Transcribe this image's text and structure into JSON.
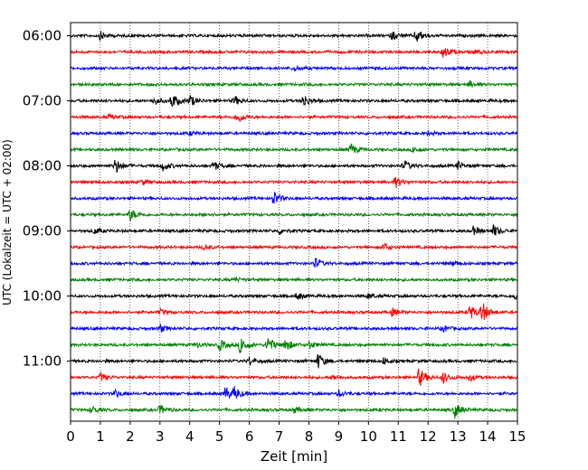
{
  "chart_data": {
    "type": "line",
    "title": "",
    "xlabel": "Zeit  [min]",
    "ylabel": "UTC (Lokalzeit = UTC + 02:00)",
    "xlim": [
      0,
      15
    ],
    "x_ticks": [
      "0",
      "1",
      "2",
      "3",
      "4",
      "5",
      "6",
      "7",
      "8",
      "9",
      "10",
      "11",
      "12",
      "13",
      "14",
      "15"
    ],
    "y_tick_labels": [
      "06:00",
      "07:00",
      "08:00",
      "09:00",
      "10:00",
      "11:00"
    ],
    "grid": "vertical dotted lines at each minute",
    "trace_interval_min": 15,
    "start_time": "06:00",
    "trace_colors": [
      "#000000",
      "#ff0000",
      "#0000ff",
      "#008000"
    ],
    "series": [
      {
        "row": 0,
        "color": "#000000",
        "events": [
          [
            11.6,
            0.55
          ],
          [
            1.0,
            0.3
          ],
          [
            10.8,
            0.35
          ]
        ]
      },
      {
        "row": 1,
        "color": "#ff0000",
        "events": [
          [
            12.5,
            0.5
          ],
          [
            13.6,
            0.2
          ]
        ]
      },
      {
        "row": 2,
        "color": "#0000ff",
        "events": [
          [
            7.5,
            0.2
          ]
        ]
      },
      {
        "row": 3,
        "color": "#008000",
        "events": [
          [
            13.4,
            0.25
          ]
        ]
      },
      {
        "row": 4,
        "color": "#000000",
        "events": [
          [
            3.4,
            0.6
          ],
          [
            4.0,
            0.45
          ],
          [
            7.8,
            0.55
          ],
          [
            5.5,
            0.35
          ],
          [
            2.8,
            0.3
          ]
        ]
      },
      {
        "row": 5,
        "color": "#ff0000",
        "events": [
          [
            5.6,
            0.45
          ],
          [
            1.3,
            0.2
          ]
        ]
      },
      {
        "row": 6,
        "color": "#0000ff",
        "events": [
          [
            4.0,
            0.15
          ],
          [
            12.0,
            0.15
          ]
        ]
      },
      {
        "row": 7,
        "color": "#008000",
        "events": [
          [
            9.4,
            0.45
          ],
          [
            11.5,
            0.2
          ]
        ]
      },
      {
        "row": 8,
        "color": "#000000",
        "events": [
          [
            1.5,
            0.6
          ],
          [
            3.1,
            0.35
          ],
          [
            4.8,
            0.35
          ],
          [
            11.2,
            0.4
          ],
          [
            13.0,
            0.3
          ]
        ]
      },
      {
        "row": 9,
        "color": "#ff0000",
        "events": [
          [
            10.9,
            0.45
          ],
          [
            2.4,
            0.2
          ]
        ]
      },
      {
        "row": 10,
        "color": "#0000ff",
        "events": [
          [
            6.8,
            0.6
          ]
        ]
      },
      {
        "row": 11,
        "color": "#008000",
        "events": [
          [
            2.0,
            0.45
          ],
          [
            4.5,
            0.15
          ]
        ]
      },
      {
        "row": 12,
        "color": "#000000",
        "events": [
          [
            14.2,
            0.45
          ],
          [
            13.5,
            0.35
          ],
          [
            7.0,
            0.25
          ],
          [
            0.8,
            0.25
          ]
        ]
      },
      {
        "row": 13,
        "color": "#ff0000",
        "events": [
          [
            10.5,
            0.3
          ],
          [
            4.5,
            0.2
          ]
        ]
      },
      {
        "row": 14,
        "color": "#0000ff",
        "events": [
          [
            8.2,
            0.4
          ],
          [
            12.8,
            0.2
          ]
        ]
      },
      {
        "row": 15,
        "color": "#008000",
        "events": [
          [
            5.5,
            0.15
          ]
        ]
      },
      {
        "row": 16,
        "color": "#000000",
        "events": [
          [
            7.6,
            0.3
          ],
          [
            10.0,
            0.2
          ],
          [
            14.9,
            0.25
          ]
        ]
      },
      {
        "row": 17,
        "color": "#ff0000",
        "events": [
          [
            13.8,
            0.85
          ],
          [
            13.4,
            0.6
          ],
          [
            10.8,
            0.3
          ],
          [
            3.0,
            0.2
          ]
        ]
      },
      {
        "row": 18,
        "color": "#0000ff",
        "events": [
          [
            3.0,
            0.3
          ],
          [
            12.5,
            0.25
          ]
        ]
      },
      {
        "row": 19,
        "color": "#008000",
        "events": [
          [
            5.7,
            0.75
          ],
          [
            6.6,
            0.75
          ],
          [
            7.2,
            0.55
          ],
          [
            5.0,
            0.45
          ],
          [
            8.0,
            0.3
          ],
          [
            4.2,
            0.2
          ]
        ]
      },
      {
        "row": 20,
        "color": "#000000",
        "events": [
          [
            8.3,
            0.6
          ],
          [
            6.0,
            0.3
          ],
          [
            10.5,
            0.25
          ]
        ]
      },
      {
        "row": 21,
        "color": "#ff0000",
        "events": [
          [
            11.7,
            0.75
          ],
          [
            12.5,
            0.45
          ],
          [
            1.0,
            0.3
          ],
          [
            13.4,
            0.25
          ],
          [
            8.8,
            0.2
          ]
        ]
      },
      {
        "row": 22,
        "color": "#0000ff",
        "events": [
          [
            5.2,
            0.55
          ],
          [
            5.5,
            0.45
          ],
          [
            1.5,
            0.3
          ],
          [
            9.0,
            0.25
          ]
        ]
      },
      {
        "row": 23,
        "color": "#008000",
        "events": [
          [
            12.9,
            0.6
          ],
          [
            3.0,
            0.35
          ],
          [
            0.7,
            0.3
          ],
          [
            7.5,
            0.25
          ]
        ]
      }
    ]
  }
}
